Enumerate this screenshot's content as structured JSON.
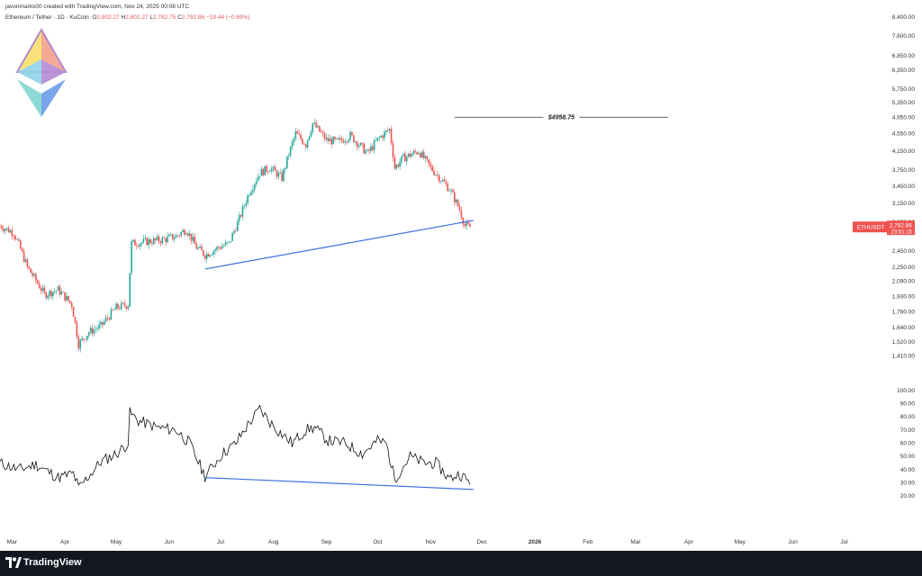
{
  "header": {
    "credit": "javonmarks00 created with TradingView.com, Nov 24, 2025 00:08 UTC",
    "symbol": "Ethereum / Tether · 1D · KuCoin",
    "o_label": "O",
    "o_value": "2,802.27",
    "h_label": "H",
    "h_value": "2,802.27",
    "l_label": "L",
    "l_value": "2,782.75",
    "c_label": "C",
    "c_value": "2,782.86",
    "change": "−19.44 (−0.69%)"
  },
  "footer": {
    "brand": "TradingView"
  },
  "colors": {
    "up": "#26a69a",
    "down": "#ef5350",
    "trendline": "#3d6fe0",
    "price_badge": "#ef5350",
    "footer_bg": "#131722"
  },
  "icons": {
    "logo": "ethereum-diamond-logo",
    "footer": "tradingview-logo-icon"
  },
  "chart_data": [
    {
      "type": "candlestick",
      "scale": "log",
      "price_ticks": [
        8400,
        7600,
        6850,
        6350,
        5750,
        5350,
        4950,
        4550,
        4150,
        3750,
        3450,
        3150,
        2850,
        2450,
        2250,
        2090,
        1930,
        1780,
        1640,
        1520,
        1410
      ],
      "price_tick_labels": [
        "8,400.00",
        "7,600.00",
        "6,850.00",
        "6,350.00",
        "5,750.00",
        "5,350.00",
        "4,950.00",
        "4,550.00",
        "4,150.00",
        "3,750.00",
        "3,450.00",
        "3,150.00",
        "2,850.00",
        "2,450.00",
        "2,250.00",
        "2,090.00",
        "1,930.00",
        "1,780.00",
        "1,640.00",
        "1,520.00",
        "1,410.00"
      ],
      "ylim": [
        1330,
        8600
      ],
      "x_axis_labels": [
        "Mar",
        "Apr",
        "May",
        "Jun",
        "Jul",
        "Aug",
        "Sep",
        "Oct",
        "Nov",
        "Dec",
        "2026",
        "Feb",
        "Mar",
        "Apr",
        "May",
        "Jun",
        "Jul"
      ],
      "x_axis_dates": [
        "2025-03-01",
        "2025-04-01",
        "2025-05-01",
        "2025-06-01",
        "2025-07-01",
        "2025-08-01",
        "2025-09-01",
        "2025-10-01",
        "2025-11-01",
        "2025-12-01",
        "2026-01-01",
        "2026-02-01",
        "2026-03-01",
        "2026-04-01",
        "2026-05-01",
        "2026-06-01",
        "2026-07-01"
      ],
      "x_range": [
        "2025-02-22",
        "2026-07-26"
      ],
      "price_path_dates": [
        "2025-02-22",
        "2025-03-02",
        "2025-03-10",
        "2025-03-20",
        "2025-03-28",
        "2025-04-05",
        "2025-04-09",
        "2025-04-15",
        "2025-04-22",
        "2025-05-01",
        "2025-05-08",
        "2025-05-10",
        "2025-05-20",
        "2025-05-28",
        "2025-06-05",
        "2025-06-11",
        "2025-06-17",
        "2025-06-22",
        "2025-06-30",
        "2025-07-06",
        "2025-07-12",
        "2025-07-18",
        "2025-07-24",
        "2025-07-30",
        "2025-08-06",
        "2025-08-14",
        "2025-08-20",
        "2025-08-24",
        "2025-09-01",
        "2025-09-08",
        "2025-09-15",
        "2025-09-25",
        "2025-10-02",
        "2025-10-08",
        "2025-10-11",
        "2025-10-16",
        "2025-10-25",
        "2025-11-01",
        "2025-11-05",
        "2025-11-12",
        "2025-11-18",
        "2025-11-21",
        "2025-11-24"
      ],
      "price_path_values": [
        2800,
        2700,
        2250,
        1950,
        2000,
        1850,
        1500,
        1600,
        1650,
        1820,
        1850,
        2550,
        2580,
        2600,
        2650,
        2750,
        2500,
        2400,
        2500,
        2550,
        2900,
        3350,
        3700,
        3800,
        3600,
        4550,
        4300,
        4800,
        4400,
        4350,
        4500,
        4100,
        4450,
        4650,
        3800,
        4000,
        4150,
        3800,
        3650,
        3400,
        3050,
        2800,
        2782
      ],
      "trendline": {
        "from_date": "2025-06-22",
        "from": 2230,
        "to_date": "2025-11-26",
        "to": 2880
      },
      "level_line": {
        "from_date": "2025-11-15",
        "to_date": "2026-03-20",
        "value": 4958.75,
        "label": "$4958.75"
      },
      "last_price": {
        "symbol": "ETHUSDT",
        "value": "2,782.86",
        "countdown": "23:51:15"
      }
    },
    {
      "type": "line",
      "indicator": "oscillator",
      "ticks": [
        100,
        90,
        80,
        70,
        60,
        50,
        40,
        30,
        20
      ],
      "tick_labels": [
        "100.00",
        "90.00",
        "80.00",
        "70.00",
        "60.00",
        "50.00",
        "40.00",
        "30.00",
        "20.00"
      ],
      "ylim": [
        14,
        104
      ],
      "dates": [
        "2025-02-22",
        "2025-03-05",
        "2025-03-15",
        "2025-03-28",
        "2025-04-06",
        "2025-04-09",
        "2025-04-22",
        "2025-05-01",
        "2025-05-08",
        "2025-05-09",
        "2025-05-14",
        "2025-05-25",
        "2025-06-05",
        "2025-06-13",
        "2025-06-22",
        "2025-07-02",
        "2025-07-10",
        "2025-07-16",
        "2025-07-24",
        "2025-07-30",
        "2025-08-05",
        "2025-08-12",
        "2025-08-20",
        "2025-08-25",
        "2025-09-02",
        "2025-09-12",
        "2025-09-22",
        "2025-10-01",
        "2025-10-06",
        "2025-10-11",
        "2025-10-20",
        "2025-10-28",
        "2025-11-04",
        "2025-11-12",
        "2025-11-18",
        "2025-11-24"
      ],
      "values": [
        45,
        40,
        44,
        34,
        37,
        26,
        46,
        52,
        60,
        83,
        77,
        72,
        70,
        60,
        35,
        52,
        60,
        72,
        86,
        76,
        68,
        60,
        70,
        72,
        62,
        60,
        52,
        62,
        60,
        33,
        50,
        45,
        45,
        33,
        37,
        30
      ],
      "trendline": {
        "from_date": "2025-06-22",
        "from": 34,
        "to_date": "2025-11-26",
        "to": 25
      }
    }
  ]
}
